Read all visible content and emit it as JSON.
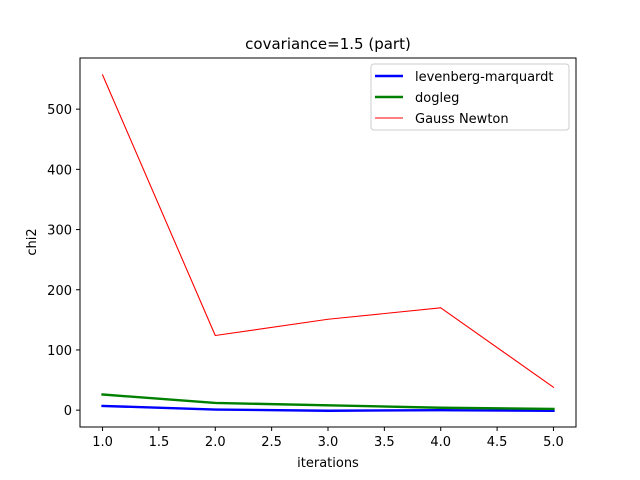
{
  "chart_data": {
    "type": "line",
    "title": "covariance=1.5 (part)",
    "xlabel": "iterations",
    "ylabel": "chi2",
    "x": [
      1,
      2,
      3,
      4,
      5
    ],
    "xlim": [
      0.8,
      5.2
    ],
    "ylim": [
      -28,
      585
    ],
    "xticks": [
      1.0,
      1.5,
      2.0,
      2.5,
      3.0,
      3.5,
      4.0,
      4.5,
      5.0
    ],
    "xtick_labels": [
      "1.0",
      "1.5",
      "2.0",
      "2.5",
      "3.0",
      "3.5",
      "4.0",
      "4.5",
      "5.0"
    ],
    "yticks": [
      0,
      100,
      200,
      300,
      400,
      500
    ],
    "ytick_labels": [
      "0",
      "100",
      "200",
      "300",
      "400",
      "500"
    ],
    "grid": false,
    "legend_position": "top-right",
    "series": [
      {
        "name": "levenberg-marquardt",
        "values": [
          7,
          1,
          -1,
          0,
          -1
        ],
        "color": "#0000ff",
        "width": "thick"
      },
      {
        "name": "dogleg",
        "values": [
          26,
          12,
          8,
          4,
          2
        ],
        "color": "#008000",
        "width": "thick"
      },
      {
        "name": "Gauss Newton",
        "values": [
          557,
          124,
          151,
          170,
          38
        ],
        "color": "#ff0000",
        "width": "thin"
      }
    ]
  }
}
